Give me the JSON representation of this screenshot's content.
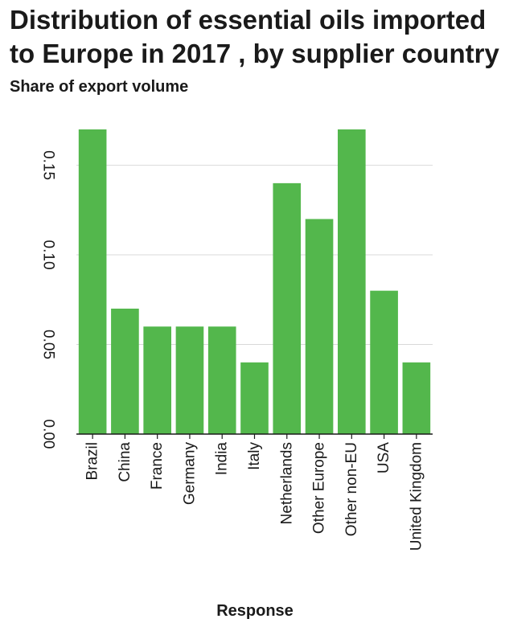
{
  "chart_data": {
    "type": "bar",
    "title": "Distribution of essential oils imported to Europe in 2017 , by supplier country",
    "subtitle": "Share of export volume",
    "xlabel": "Response",
    "ylabel": "",
    "categories": [
      "Brazil",
      "China",
      "France",
      "Germany",
      "India",
      "Italy",
      "Netherlands",
      "Other Europe",
      "Other non-EU",
      "USA",
      "United Kingdom"
    ],
    "values": [
      0.17,
      0.07,
      0.06,
      0.06,
      0.06,
      0.04,
      0.14,
      0.12,
      0.17,
      0.08,
      0.04
    ],
    "ylim": [
      0,
      0.17
    ],
    "yticks": [
      "0.00",
      "0.05",
      "0.10",
      "0.15"
    ],
    "grid": true,
    "legend": "none",
    "colors": {
      "bar": "#53b74c",
      "grid": "#d9d9d9",
      "axis": "#1a1a1a",
      "text": "#1a1a1a"
    }
  }
}
